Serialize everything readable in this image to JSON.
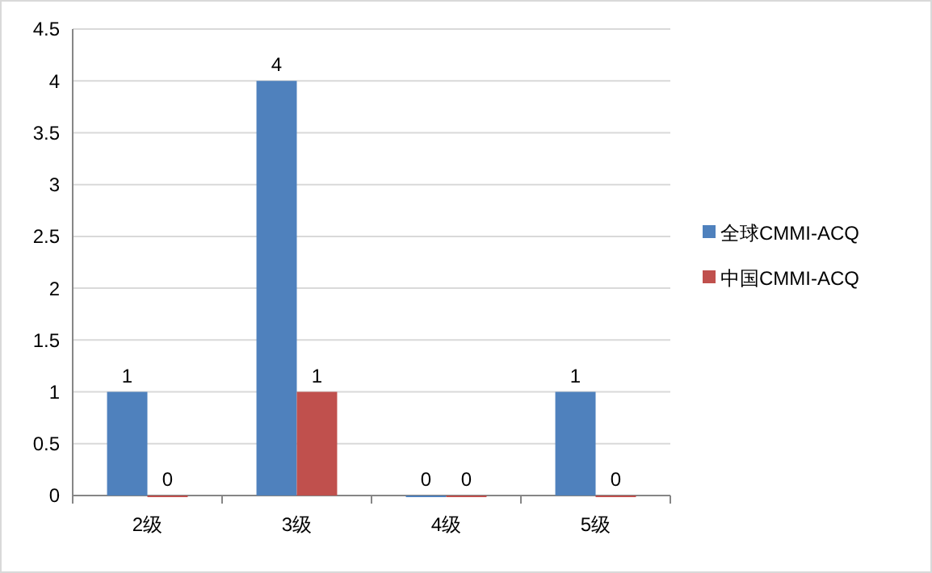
{
  "chart_data": {
    "type": "bar",
    "categories": [
      "2级",
      "3级",
      "4级",
      "5级"
    ],
    "series": [
      {
        "name": "全球CMMI-ACQ",
        "color": "#4f81bd",
        "values": [
          1,
          4,
          0,
          1
        ]
      },
      {
        "name": "中国CMMI-ACQ",
        "color": "#c0504d",
        "values": [
          0,
          1,
          0,
          0
        ]
      }
    ],
    "ylim": [
      0,
      4.5
    ],
    "yticks": [
      0,
      0.5,
      1,
      1.5,
      2,
      2.5,
      3,
      3.5,
      4,
      4.5
    ],
    "grid": "y",
    "legend": "right",
    "data_labels": true
  }
}
